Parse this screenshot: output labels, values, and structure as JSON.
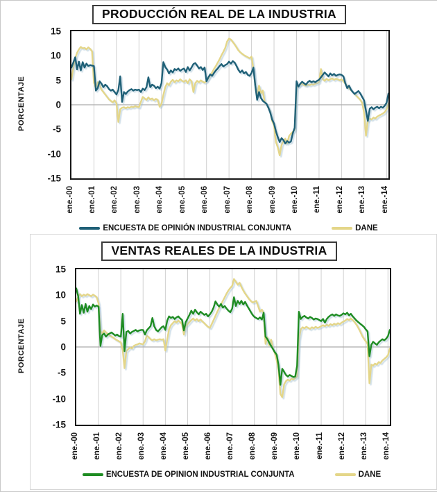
{
  "page": {
    "background": "#ffffff",
    "border_color": "#c8c8c8"
  },
  "chart_data": [
    {
      "type": "line",
      "title": "PRODUCCIÓN REAL DE LA INDUSTRIA",
      "xlabel": "",
      "ylabel": "PORCENTAJE",
      "ylim": [
        -15,
        15
      ],
      "yticks": [
        15,
        10,
        5,
        0,
        -5,
        -10,
        -15
      ],
      "x_unit": "monthly, ene-2000 to feb-2014 (170 points)",
      "x_tick_labels": [
        "ene.-00",
        "ene.-01",
        "ene.-02",
        "ene.-03",
        "ene.-04",
        "ene.-05",
        "ene.-06",
        "ene.-07",
        "ene.-08",
        "ene.-09",
        "ene.-10",
        "ene.-11",
        "ene.-12",
        "ene.-13",
        "ene.-14"
      ],
      "grid": {
        "vertical": "every January",
        "horizontal": "zero line only"
      },
      "legend_position": "bottom",
      "series": [
        {
          "name": "ENCUESTA DE OPINIÓN INDUSTRIAL CONJUNTA",
          "color": "#1f6077",
          "values": [
            7.6,
            8.6,
            9.7,
            7.2,
            8.8,
            7.0,
            8.7,
            7.6,
            8.4,
            7.9,
            8.1,
            8.0,
            7.9,
            2.9,
            3.4,
            4.8,
            4.3,
            3.6,
            4.1,
            3.8,
            3.2,
            2.9,
            3.1,
            2.6,
            2.1,
            3.0,
            5.8,
            0.6,
            2.6,
            2.2,
            2.7,
            3.0,
            3.2,
            2.9,
            3.1,
            3.0,
            3.1,
            2.6,
            3.3,
            3.0,
            3.6,
            5.6,
            3.6,
            4.1,
            3.9,
            3.4,
            3.7,
            3.3,
            4.4,
            8.7,
            7.7,
            7.2,
            6.4,
            7.0,
            6.6,
            7.3,
            7.1,
            7.4,
            6.9,
            7.2,
            7.4,
            6.7,
            7.7,
            7.0,
            7.6,
            8.3,
            8.5,
            8.0,
            7.4,
            7.7,
            7.1,
            7.6,
            4.8,
            5.6,
            6.2,
            5.9,
            6.5,
            7.0,
            7.4,
            7.9,
            8.3,
            7.8,
            8.1,
            8.3,
            8.8,
            8.4,
            8.9,
            8.6,
            7.9,
            7.1,
            6.6,
            7.0,
            6.4,
            6.7,
            6.1,
            5.9,
            6.5,
            7.6,
            3.9,
            1.0,
            2.6,
            1.4,
            0.8,
            0.5,
            0.2,
            -0.6,
            -1.6,
            -3.0,
            -3.8,
            -5.4,
            -6.6,
            -7.6,
            -6.8,
            -7.2,
            -7.9,
            -7.4,
            -7.7,
            -7.5,
            -5.8,
            -4.7,
            4.8,
            3.7,
            4.3,
            4.7,
            4.4,
            4.1,
            4.6,
            4.9,
            4.6,
            4.8,
            4.6,
            4.9,
            5.1,
            5.6,
            6.1,
            6.6,
            6.2,
            5.8,
            6.4,
            6.0,
            6.3,
            5.9,
            6.1,
            6.2,
            6.1,
            5.8,
            4.4,
            3.4,
            3.9,
            3.1,
            2.6,
            2.2,
            2.5,
            2.8,
            2.3,
            1.6,
            0.9,
            -1.2,
            -3.3,
            -0.8,
            -0.5,
            -0.9,
            -0.6,
            -0.4,
            -0.7,
            -0.4,
            -0.6,
            -0.2,
            0.4,
            2.3
          ]
        },
        {
          "name": "DANE",
          "color": "#e4d689",
          "values": [
            5.2,
            7.5,
            9.5,
            10.6,
            11.3,
            11.8,
            11.5,
            11.6,
            11.3,
            11.7,
            11.4,
            10.9,
            4.5,
            3.4,
            4.6,
            4.0,
            3.1,
            2.6,
            2.1,
            1.6,
            1.1,
            0.8,
            0.5,
            0.9,
            0.3,
            -3.5,
            -0.9,
            -0.6,
            -0.5,
            -0.7,
            -0.5,
            -0.6,
            -0.4,
            -0.5,
            -0.3,
            -0.4,
            -0.5,
            0.6,
            1.6,
            1.3,
            1.0,
            1.5,
            1.1,
            1.3,
            0.9,
            1.2,
            1.0,
            -0.4,
            0.2,
            2.0,
            3.6,
            4.4,
            4.0,
            4.7,
            5.1,
            4.6,
            5.0,
            4.8,
            5.2,
            4.9,
            4.7,
            5.0,
            4.4,
            5.2,
            4.8,
            2.6,
            4.4,
            4.9,
            4.6,
            5.0,
            4.7,
            4.5,
            4.9,
            5.4,
            6.0,
            6.6,
            7.3,
            7.9,
            8.6,
            9.3,
            10.1,
            10.8,
            11.6,
            12.9,
            13.5,
            13.3,
            12.8,
            12.3,
            11.7,
            11.1,
            10.7,
            10.4,
            10.1,
            9.9,
            9.7,
            9.5,
            9.8,
            7.3,
            4.0,
            1.8,
            3.9,
            2.3,
            2.9,
            0.6,
            0.2,
            -0.6,
            -1.4,
            -3.3,
            -4.2,
            -7.6,
            -8.7,
            -10.3,
            -8.2,
            -7.4,
            -6.9,
            -7.9,
            -6.4,
            -5.9,
            -5.5,
            -5.1,
            3.6,
            3.9,
            4.1,
            4.3,
            4.0,
            3.9,
            4.1,
            4.0,
            4.2,
            4.1,
            4.3,
            4.4,
            4.6,
            7.3,
            5.2,
            4.9,
            5.3,
            5.0,
            5.2,
            5.4,
            5.1,
            5.3,
            5.2,
            5.0,
            5.2,
            4.8,
            4.3,
            3.8,
            3.4,
            3.0,
            2.6,
            2.2,
            1.8,
            1.4,
            1.0,
            0.4,
            -1.6,
            -6.3,
            -3.2,
            -2.8,
            -3.0,
            -2.6,
            -2.8,
            -2.4,
            -2.2,
            -2.0,
            -1.8,
            -1.5,
            -0.9,
            0.3
          ]
        }
      ]
    },
    {
      "type": "line",
      "title": "VENTAS REALES DE LA INDUSTRIA",
      "xlabel": "",
      "ylabel": "PORCENTAJE",
      "ylim": [
        -15,
        15
      ],
      "yticks": [
        15,
        10,
        5,
        0,
        -5,
        -10,
        -15
      ],
      "x_unit": "monthly, ene-2000 to feb-2014 (170 points)",
      "x_tick_labels": [
        "ene.-00",
        "ene.-01",
        "ene.-02",
        "ene.-03",
        "ene.-04",
        "ene.-05",
        "ene.-06",
        "ene.-07",
        "ene.-08",
        "ene.-09",
        "ene.-10",
        "ene.-11",
        "ene.-12",
        "ene.-13",
        "ene.-14"
      ],
      "grid": {
        "vertical": "every January",
        "horizontal": "zero line only"
      },
      "legend_position": "bottom",
      "series": [
        {
          "name": "ENCUESTA DE OPINION INDUSTRIAL CONJUNTA",
          "color": "#1e8c22",
          "values": [
            11.3,
            9.8,
            6.4,
            8.1,
            6.6,
            8.3,
            6.8,
            7.9,
            7.3,
            8.2,
            7.8,
            8.0,
            7.8,
            0.2,
            2.3,
            2.6,
            2.0,
            2.4,
            2.6,
            2.8,
            2.5,
            2.2,
            2.4,
            2.1,
            2.0,
            6.4,
            -0.8,
            2.9,
            3.1,
            2.6,
            2.9,
            3.1,
            3.3,
            3.0,
            3.2,
            3.3,
            3.3,
            2.4,
            3.2,
            3.6,
            4.0,
            5.6,
            4.0,
            3.3,
            3.0,
            3.4,
            3.8,
            4.0,
            3.3,
            5.1,
            5.9,
            5.6,
            5.8,
            5.4,
            5.7,
            5.9,
            5.5,
            5.2,
            3.2,
            4.8,
            5.5,
            6.2,
            7.0,
            6.4,
            7.2,
            6.7,
            6.3,
            6.8,
            6.5,
            6.2,
            6.4,
            5.9,
            6.3,
            6.8,
            7.6,
            8.8,
            8.2,
            7.8,
            8.3,
            7.6,
            7.9,
            7.4,
            7.0,
            6.7,
            7.4,
            9.6,
            7.9,
            8.9,
            8.3,
            8.9,
            8.2,
            8.7,
            8.0,
            7.4,
            6.8,
            6.2,
            5.8,
            5.6,
            5.4,
            5.7,
            5.3,
            6.6,
            2.0,
            1.5,
            0.8,
            0.2,
            -0.4,
            -1.0,
            -1.5,
            -3.5,
            -7.3,
            -4.2,
            -4.8,
            -5.4,
            -5.7,
            -5.4,
            -5.6,
            -5.8,
            -5.7,
            -3.6,
            6.8,
            5.4,
            5.8,
            6.0,
            5.7,
            5.5,
            5.8,
            5.6,
            5.3,
            5.5,
            5.4,
            5.2,
            5.0,
            5.4,
            4.7,
            5.4,
            5.8,
            6.1,
            6.3,
            6.0,
            6.3,
            6.1,
            6.0,
            6.2,
            6.5,
            6.3,
            6.6,
            6.1,
            6.4,
            5.9,
            5.5,
            5.1,
            4.8,
            4.5,
            4.2,
            3.9,
            3.4,
            3.0,
            -1.8,
            0.4,
            1.0,
            0.7,
            0.4,
            0.9,
            1.2,
            1.5,
            1.3,
            1.6,
            2.1,
            3.3
          ]
        },
        {
          "name": "DANE",
          "color": "#e4d689",
          "values": [
            8.8,
            9.7,
            10.2,
            9.8,
            10.1,
            9.9,
            10.2,
            10.0,
            9.8,
            10.1,
            9.9,
            9.6,
            8.4,
            3.1,
            2.6,
            3.2,
            2.8,
            2.5,
            2.2,
            2.0,
            1.8,
            1.5,
            1.3,
            1.1,
            0.9,
            -0.6,
            -4.1,
            -0.8,
            -0.4,
            -0.1,
            -0.3,
            0.2,
            0.4,
            0.5,
            0.7,
            0.6,
            0.5,
            1.1,
            2.2,
            1.9,
            1.5,
            1.3,
            1.5,
            1.3,
            1.4,
            1.5,
            1.4,
            1.5,
            -0.7,
            1.5,
            3.4,
            4.2,
            4.6,
            5.0,
            4.7,
            5.1,
            4.8,
            4.4,
            2.4,
            4.0,
            4.4,
            4.8,
            5.2,
            5.5,
            5.1,
            5.4,
            5.0,
            5.3,
            4.9,
            4.6,
            4.2,
            3.9,
            3.7,
            4.4,
            5.2,
            6.0,
            6.8,
            7.5,
            8.2,
            8.9,
            9.6,
            10.3,
            10.9,
            11.4,
            11.8,
            13.1,
            12.6,
            12.0,
            12.4,
            11.6,
            10.9,
            10.3,
            9.8,
            9.3,
            8.9,
            8.6,
            8.7,
            8.9,
            7.9,
            6.8,
            7.2,
            6.5,
            0.6,
            1.9,
            0.3,
            1.4,
            -0.3,
            -1.2,
            -2.6,
            -4.4,
            -9.1,
            -9.7,
            -7.2,
            -6.6,
            -6.3,
            -6.5,
            -6.1,
            -6.3,
            -6.0,
            -5.7,
            1.4,
            3.4,
            3.8,
            3.6,
            3.9,
            3.7,
            3.5,
            3.8,
            3.6,
            3.9,
            3.7,
            3.8,
            4.0,
            4.2,
            4.0,
            4.3,
            4.1,
            4.4,
            4.2,
            4.5,
            4.3,
            4.6,
            4.4,
            4.7,
            4.9,
            5.1,
            5.4,
            5.2,
            5.5,
            5.2,
            4.8,
            4.3,
            3.7,
            3.0,
            2.2,
            1.6,
            1.1,
            0.6,
            -7.0,
            -3.4,
            -3.6,
            -3.2,
            -3.4,
            -2.9,
            -3.1,
            -2.6,
            -2.3,
            -2.0,
            -1.6,
            -0.3
          ]
        }
      ]
    }
  ]
}
